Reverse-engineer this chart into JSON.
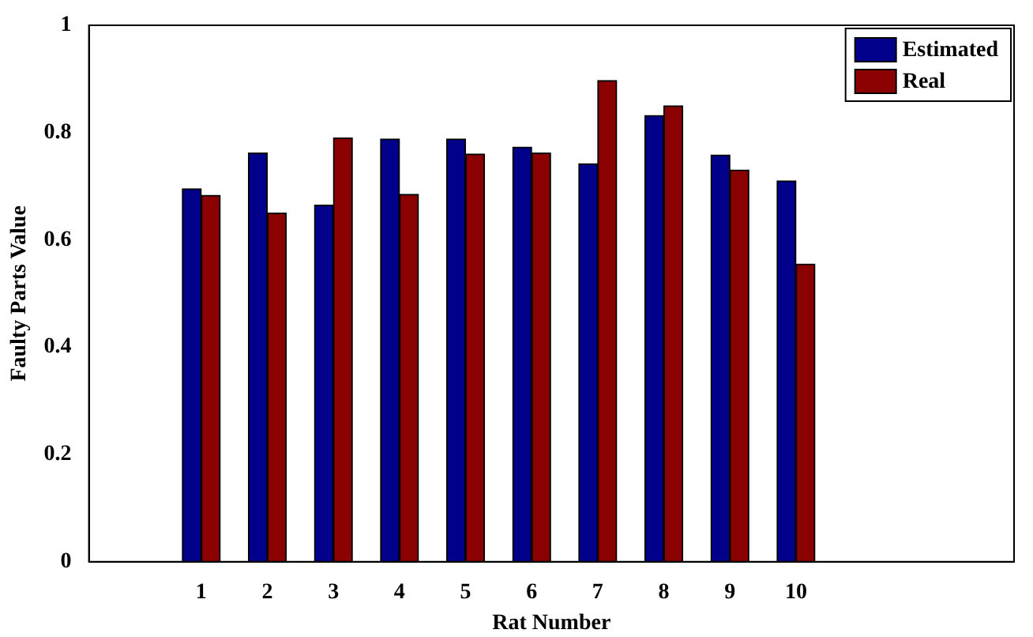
{
  "chart_data": {
    "type": "bar",
    "xlabel": "Rat Number",
    "ylabel": "Faulty Parts Value",
    "categories": [
      "1",
      "2",
      "3",
      "4",
      "5",
      "6",
      "7",
      "8",
      "9",
      "10"
    ],
    "series": [
      {
        "name": "Estimated",
        "color": "#00008b",
        "values": [
          0.695,
          0.762,
          0.665,
          0.788,
          0.788,
          0.773,
          0.742,
          0.832,
          0.758,
          0.71
        ]
      },
      {
        "name": "Real",
        "color": "#8b0000",
        "values": [
          0.683,
          0.65,
          0.79,
          0.685,
          0.76,
          0.762,
          0.897,
          0.85,
          0.73,
          0.555
        ]
      }
    ],
    "ylim": [
      0,
      1
    ],
    "yticks": [
      0,
      0.2,
      0.4,
      0.6,
      0.8,
      1
    ],
    "grid": false,
    "legend": "top right"
  }
}
